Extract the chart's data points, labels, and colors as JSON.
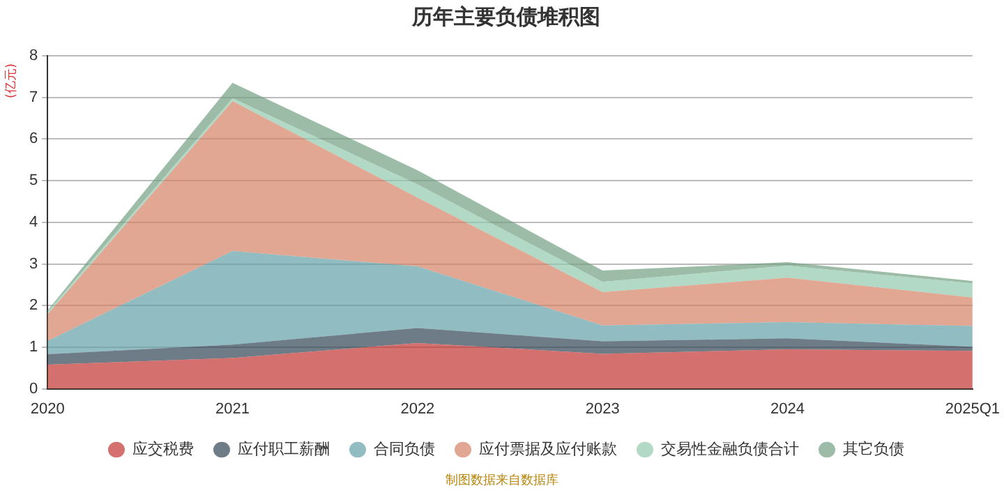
{
  "chart_data": {
    "type": "area",
    "title": "历年主要负债堆积图",
    "ylabel": "(亿元)",
    "categories": [
      "2020",
      "2021",
      "2022",
      "2023",
      "2024",
      "2025Q1"
    ],
    "stacked": true,
    "series": [
      {
        "name": "应交税费",
        "color": "#c23531",
        "values": [
          0.58,
          0.74,
          1.1,
          0.84,
          0.95,
          0.91
        ]
      },
      {
        "name": "应付职工薪酬",
        "color": "#2f4554",
        "values": [
          0.25,
          0.32,
          0.36,
          0.3,
          0.26,
          0.1
        ]
      },
      {
        "name": "合同负债",
        "color": "#61a0a8",
        "values": [
          0.32,
          2.25,
          1.48,
          0.38,
          0.39,
          0.5
        ]
      },
      {
        "name": "应付票据及应付账款",
        "color": "#d48265",
        "values": [
          0.64,
          3.6,
          1.65,
          0.8,
          1.07,
          0.68
        ]
      },
      {
        "name": "交易性金融负债合计",
        "color": "#91c7ae",
        "values": [
          0.06,
          0.07,
          0.32,
          0.25,
          0.29,
          0.34
        ]
      },
      {
        "name": "其它负债",
        "color": "#749f83",
        "values": [
          0.03,
          0.37,
          0.34,
          0.27,
          0.08,
          0.06
        ]
      }
    ],
    "ylim": [
      0,
      8
    ],
    "yticks": [
      0,
      1,
      2,
      3,
      4,
      5,
      6,
      7,
      8
    ],
    "grid": "y",
    "legend": "bottom",
    "annotations": [
      "制图数据来自数据库"
    ]
  }
}
